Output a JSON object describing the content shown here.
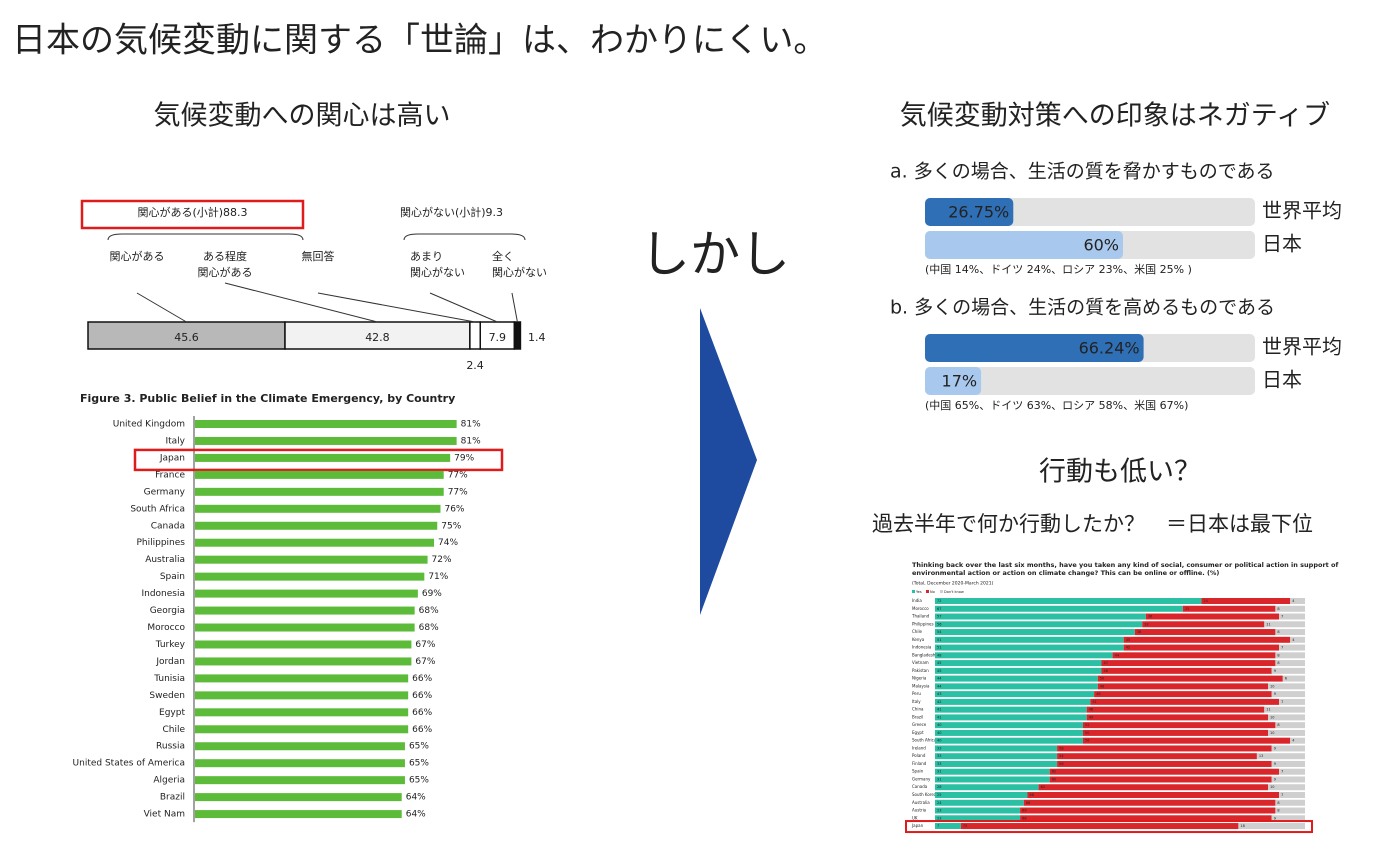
{
  "title": "日本の気候変動に関する「世論」は、わかりにくい。",
  "left_heading": "気候変動への関心は高い",
  "center_text": "しかし",
  "right_heading": "気候変動対策への印象はネガティブ",
  "action_heading": "行動も低い？",
  "action_question": "過去半年で何か行動したか？　＝日本は最下位",
  "chart_data": [
    {
      "type": "stacked-bar",
      "group_labels": [
        "関心がある(小計)88.3",
        "関心がない(小計)9.3"
      ],
      "categories": [
        [
          "関心がある"
        ],
        [
          "ある程度",
          "関心がある"
        ],
        [
          "無回答"
        ],
        [
          "あまり",
          "関心がない"
        ],
        [
          "全く",
          "関心がない"
        ]
      ],
      "values": [
        45.6,
        42.8,
        2.4,
        7.9,
        1.4
      ],
      "colors": [
        "#b8b8b8",
        "#f2f2f2",
        "#ffffff",
        "#ffffff",
        "#111111"
      ],
      "xlim": [
        0,
        100
      ],
      "highlight_group": 0
    },
    {
      "type": "hbar",
      "title": "Figure 3. Public Belief in the Climate Emergency, by Country",
      "categories": [
        "United Kingdom",
        "Italy",
        "Japan",
        "France",
        "Germany",
        "South Africa",
        "Canada",
        "Philippines",
        "Australia",
        "Spain",
        "Indonesia",
        "Georgia",
        "Morocco",
        "Turkey",
        "Jordan",
        "Tunisia",
        "Sweden",
        "Egypt",
        "Chile",
        "Russia",
        "United States of America",
        "Algeria",
        "Brazil",
        "Viet Nam"
      ],
      "values": [
        81,
        81,
        79,
        77,
        77,
        76,
        75,
        74,
        72,
        71,
        69,
        68,
        68,
        67,
        67,
        66,
        66,
        66,
        66,
        65,
        65,
        65,
        64,
        64
      ],
      "value_labels": [
        "81%",
        "81%",
        "79%",
        "77%",
        "77%",
        "76%",
        "75%",
        "74%",
        "72%",
        "71%",
        "69%",
        "68%",
        "68%",
        "67%",
        "67%",
        "66%",
        "66%",
        "66%",
        "66%",
        "65%",
        "65%",
        "65%",
        "64%",
        "64%"
      ],
      "color": "#5dbb3a",
      "xlim": [
        0,
        100
      ],
      "highlight_index": 2
    },
    {
      "type": "compare-bar",
      "title": "a.  多くの場合、生活の質を脅かすものである",
      "categories": [
        "世界平均",
        "日本"
      ],
      "values": [
        26.75,
        60
      ],
      "value_labels": [
        "26.75%",
        "60%"
      ],
      "colors": [
        "#2f6fb5",
        "#a9c8ee"
      ],
      "label_colors": [
        "#1c3f94",
        "#6fa3dc"
      ],
      "note": "(中国 14%、ドイツ 24%、ロシア 23%、米国 25% )",
      "xlim": [
        0,
        100
      ]
    },
    {
      "type": "compare-bar",
      "title": "b.  多くの場合、生活の質を高めるものである",
      "categories": [
        "世界平均",
        "日本"
      ],
      "values": [
        66.24,
        17
      ],
      "value_labels": [
        "66.24%",
        "17%"
      ],
      "colors": [
        "#2f6fb5",
        "#a9c8ee"
      ],
      "label_colors": [
        "#1c3f94",
        "#6fa3dc"
      ],
      "note": "(中国 65%、ドイツ 63%、ロシア 58%、米国 67%)",
      "xlim": [
        0,
        100
      ]
    },
    {
      "type": "stacked-hbar",
      "title": [
        "Thinking back over the last six months, have you taken any kind of social, consumer or political action in support of",
        "environmental action or action on climate change? This can be online or offline. (%)"
      ],
      "subtitle": "(Total, December 2020-March 2021)",
      "categories": [
        "India",
        "Morocco",
        "Thailand",
        "Philippines",
        "Chile",
        "Kenya",
        "Indonesia",
        "Bangladesh",
        "Vietnam",
        "Pakistan",
        "Nigeria",
        "Malaysia",
        "Peru",
        "Italy",
        "China",
        "Brazil",
        "Greece",
        "Egypt",
        "South Africa",
        "Ireland",
        "Poland",
        "Finland",
        "Spain",
        "Germany",
        "Canada",
        "South Korea",
        "Australia",
        "Austria",
        "UK",
        "Japan"
      ],
      "series": [
        {
          "name": "Yes",
          "color": "#2bbfa3",
          "values": [
            72,
            67,
            57,
            56,
            54,
            51,
            51,
            48,
            45,
            45,
            44,
            44,
            43,
            42,
            41,
            41,
            40,
            40,
            40,
            33,
            33,
            33,
            31,
            31,
            28,
            25,
            24,
            23,
            23,
            7
          ]
        },
        {
          "name": "No",
          "color": "#d9262b",
          "values": [
            24,
            25,
            36,
            33,
            38,
            45,
            42,
            44,
            47,
            46,
            50,
            46,
            48,
            51,
            48,
            49,
            52,
            50,
            56,
            58,
            54,
            58,
            62,
            60,
            62,
            68,
            68,
            69,
            68,
            75
          ]
        },
        {
          "name": "Don't know",
          "color": "#cfcfcf",
          "values": [
            4,
            8,
            7,
            11,
            8,
            4,
            7,
            8,
            8,
            9,
            6,
            10,
            9,
            7,
            11,
            10,
            8,
            10,
            4,
            9,
            13,
            9,
            7,
            9,
            10,
            7,
            8,
            8,
            9,
            18
          ]
        }
      ],
      "xlim": [
        0,
        100
      ],
      "highlight_index": 29
    }
  ]
}
